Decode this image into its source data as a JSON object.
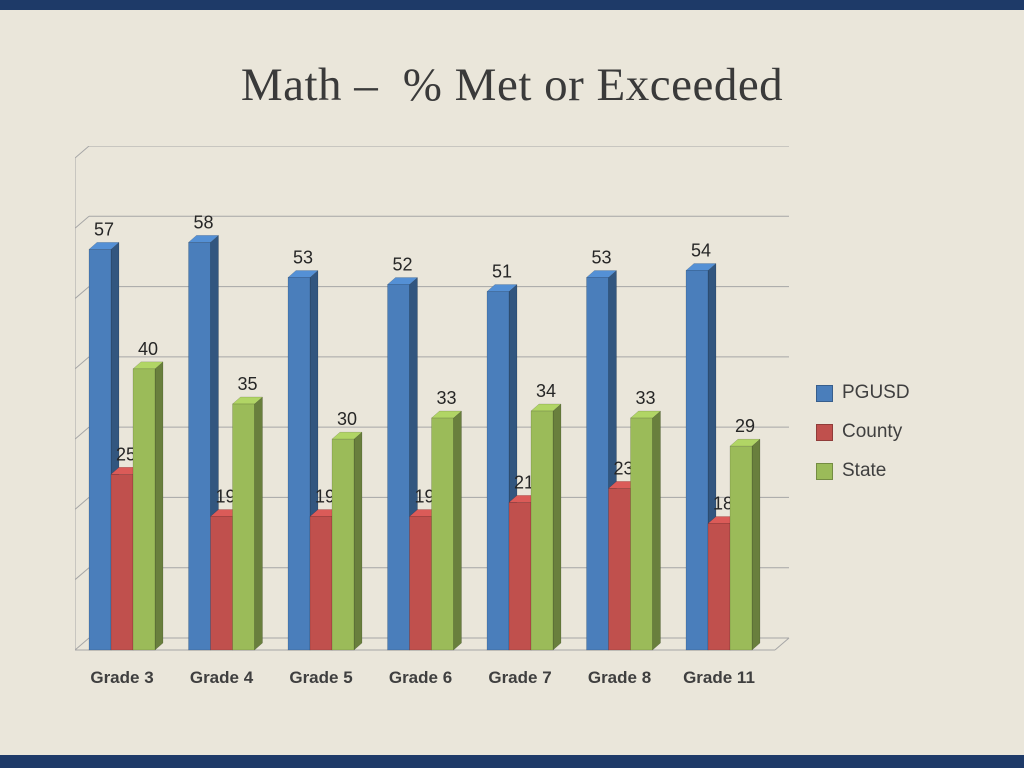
{
  "slide": {
    "title": "Math –  % Met or Exceeded",
    "background_color": "#eae6da",
    "accent_bar_color": "#1e3a68"
  },
  "chart_data": {
    "type": "bar",
    "style": "3d-grouped-column",
    "title": "Math – % Met or Exceeded",
    "categories": [
      "Grade 3",
      "Grade 4",
      "Grade 5",
      "Grade 6",
      "Grade 7",
      "Grade 8",
      "Grade 11"
    ],
    "series": [
      {
        "name": "PGUSD",
        "color": "#4a7ebb",
        "values": [
          57,
          58,
          53,
          52,
          51,
          53,
          54
        ]
      },
      {
        "name": "County",
        "color": "#c0504d",
        "values": [
          25,
          19,
          19,
          19,
          21,
          23,
          18
        ]
      },
      {
        "name": "State",
        "color": "#9bbb59",
        "values": [
          40,
          35,
          30,
          33,
          34,
          33,
          29
        ]
      }
    ],
    "xlabel": "",
    "ylabel": "",
    "ylim": [
      0,
      70
    ],
    "gridline_step": 10,
    "grid": true,
    "gridline_color": "#a6a6a6",
    "data_labels": true,
    "label_color": "#262626",
    "category_label_color": "#3f3f3f",
    "legend_position": "right"
  }
}
